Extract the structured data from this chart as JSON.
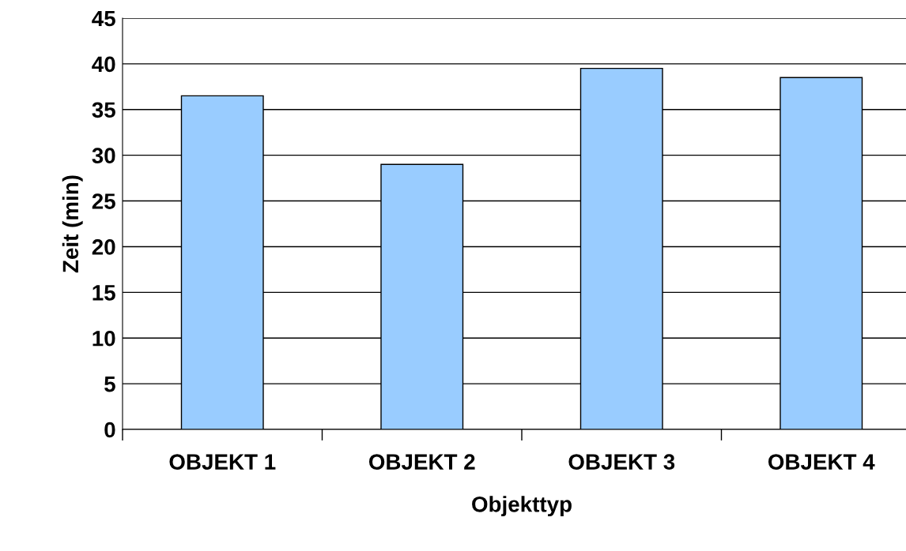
{
  "chart_data": {
    "type": "bar",
    "xlabel": "Objekttyp",
    "ylabel": "Zeit (min)",
    "categories": [
      "OBJEKT 1",
      "OBJEKT 2",
      "OBJEKT 3",
      "OBJEKT 4"
    ],
    "values": [
      36.5,
      29,
      39.5,
      38.5
    ],
    "color": "#99ccff",
    "ylim": [
      0,
      45
    ],
    "yticks": [
      0,
      5,
      10,
      15,
      20,
      25,
      30,
      35,
      40,
      45
    ],
    "grid": "y",
    "legend": false
  }
}
